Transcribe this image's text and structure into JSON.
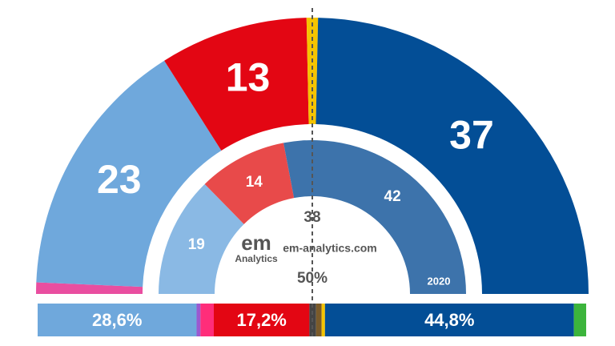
{
  "chart_data": [
    {
      "type": "hemicycle",
      "values": [
        1,
        23,
        13,
        1,
        37
      ],
      "colors": [
        "#e94ea0",
        "#6fa8dc",
        "#e30613",
        "#f5c400",
        "#034e96"
      ]
    },
    {
      "type": "hemicycle",
      "values": [
        19,
        14,
        42
      ],
      "colors": [
        "#8ab9e4",
        "#e84a4a",
        "#3d73ab"
      ],
      "year": "2020"
    },
    {
      "type": "stacked-bar",
      "values": [
        28.6,
        0.7,
        2.4,
        17.2,
        1.2,
        1.0,
        0.6,
        44.8,
        2.2
      ],
      "value_labels": [
        "28,6%",
        null,
        null,
        "17,2%",
        null,
        null,
        null,
        "44,8%",
        null
      ],
      "colors": [
        "#6fa8dc",
        "#9b59d0",
        "#ff2d7a",
        "#e30613",
        "#444444",
        "#7a5a2a",
        "#f5c400",
        "#034e96",
        "#3cb43c"
      ]
    }
  ],
  "majority": {
    "seats": 38,
    "share": {
      "value": 50,
      "label": "50%"
    }
  },
  "watermark": {
    "logo": "em",
    "name": "Analytics",
    "url": "em-analytics.com"
  }
}
